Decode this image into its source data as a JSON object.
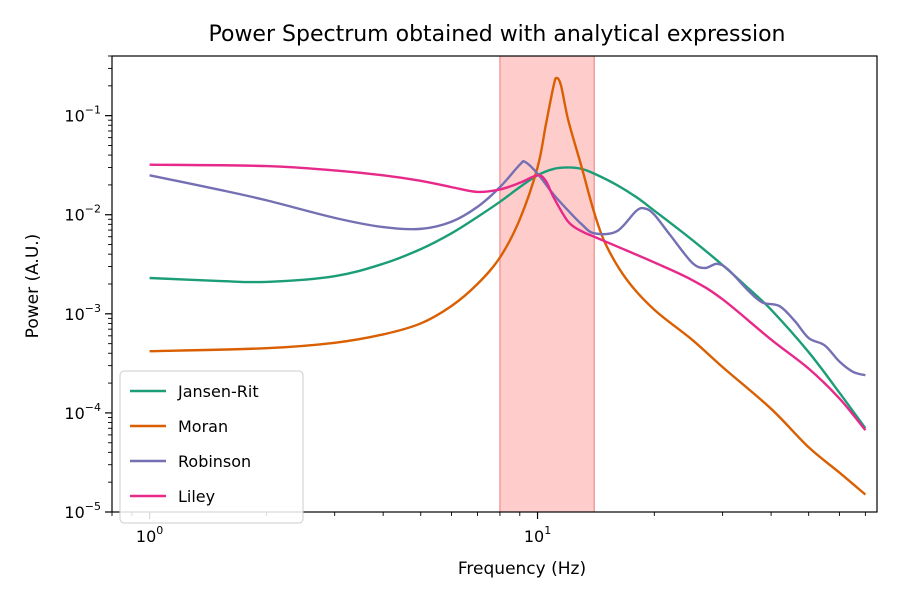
{
  "chart_data": {
    "type": "line",
    "title": "Power Spectrum obtained with analytical expression",
    "xlabel": "Frequency (Hz)",
    "ylabel": "Power (A.U.)",
    "xscale": "log",
    "yscale": "log",
    "xlim": [
      0.8,
      75
    ],
    "ylim": [
      1e-05,
      0.4
    ],
    "grid": false,
    "legend_position": "bottom-left",
    "x_ticks": [
      {
        "value": 1,
        "base": "10",
        "exp": "0"
      },
      {
        "value": 10,
        "base": "10",
        "exp": "1"
      }
    ],
    "y_ticks": [
      {
        "value": 1e-05,
        "base": "10",
        "exp": "−5"
      },
      {
        "value": 0.0001,
        "base": "10",
        "exp": "−4"
      },
      {
        "value": 0.001,
        "base": "10",
        "exp": "−3"
      },
      {
        "value": 0.01,
        "base": "10",
        "exp": "−2"
      },
      {
        "value": 0.1,
        "base": "10",
        "exp": "−1"
      }
    ],
    "highlight_band": {
      "x": [
        8,
        14
      ],
      "color": "#ffcccc",
      "edge_color": "#f08c8c"
    },
    "series": [
      {
        "name": "Jansen-Rit",
        "color": "#1b9e77",
        "points": [
          [
            1,
            0.0023
          ],
          [
            1.5,
            0.00215
          ],
          [
            2,
            0.0021
          ],
          [
            3,
            0.0024
          ],
          [
            4,
            0.0032
          ],
          [
            5,
            0.0045
          ],
          [
            6,
            0.0065
          ],
          [
            7,
            0.0095
          ],
          [
            8,
            0.0135
          ],
          [
            9,
            0.019
          ],
          [
            10,
            0.025
          ],
          [
            11,
            0.029
          ],
          [
            12,
            0.03
          ],
          [
            13,
            0.029
          ],
          [
            14,
            0.026
          ],
          [
            16,
            0.02
          ],
          [
            18,
            0.015
          ],
          [
            20,
            0.011
          ],
          [
            25,
            0.0056
          ],
          [
            30,
            0.0031
          ],
          [
            35,
            0.0018
          ],
          [
            40,
            0.0011
          ],
          [
            50,
            0.00041
          ],
          [
            60,
            0.00016
          ],
          [
            70,
            7e-05
          ]
        ]
      },
      {
        "name": "Moran",
        "color": "#d95f02",
        "points": [
          [
            1,
            0.00042
          ],
          [
            2,
            0.00045
          ],
          [
            3,
            0.00051
          ],
          [
            4,
            0.00062
          ],
          [
            5,
            0.0008
          ],
          [
            6,
            0.0012
          ],
          [
            7,
            0.002
          ],
          [
            8,
            0.0037
          ],
          [
            9,
            0.009
          ],
          [
            10,
            0.03
          ],
          [
            10.5,
            0.08
          ],
          [
            11,
            0.2
          ],
          [
            11.2,
            0.24
          ],
          [
            11.5,
            0.2
          ],
          [
            12,
            0.09
          ],
          [
            13,
            0.03
          ],
          [
            14,
            0.0105
          ],
          [
            15,
            0.005
          ],
          [
            17,
            0.0022
          ],
          [
            20,
            0.0011
          ],
          [
            25,
            0.00055
          ],
          [
            30,
            0.00029
          ],
          [
            40,
            0.00011
          ],
          [
            50,
            4.5e-05
          ],
          [
            60,
            2.5e-05
          ],
          [
            70,
            1.5e-05
          ]
        ]
      },
      {
        "name": "Robinson",
        "color": "#7570b3",
        "points": [
          [
            1,
            0.025
          ],
          [
            1.5,
            0.018
          ],
          [
            2,
            0.014
          ],
          [
            3,
            0.0093
          ],
          [
            4,
            0.0075
          ],
          [
            5,
            0.0072
          ],
          [
            6,
            0.0085
          ],
          [
            7,
            0.012
          ],
          [
            8,
            0.019
          ],
          [
            9,
            0.032
          ],
          [
            9.3,
            0.034
          ],
          [
            10,
            0.026
          ],
          [
            11,
            0.016
          ],
          [
            12,
            0.011
          ],
          [
            13,
            0.008
          ],
          [
            14,
            0.0065
          ],
          [
            16,
            0.0068
          ],
          [
            18,
            0.011
          ],
          [
            19,
            0.0115
          ],
          [
            20,
            0.01
          ],
          [
            22,
            0.0062
          ],
          [
            25,
            0.0033
          ],
          [
            27,
            0.0029
          ],
          [
            29,
            0.0032
          ],
          [
            31,
            0.0028
          ],
          [
            35,
            0.0017
          ],
          [
            38,
            0.0013
          ],
          [
            42,
            0.0012
          ],
          [
            46,
            0.00085
          ],
          [
            50,
            0.00057
          ],
          [
            55,
            0.00048
          ],
          [
            60,
            0.00033
          ],
          [
            65,
            0.00026
          ],
          [
            70,
            0.00024
          ]
        ]
      },
      {
        "name": "Liley",
        "color": "#e7298a",
        "points": [
          [
            1,
            0.032
          ],
          [
            2,
            0.031
          ],
          [
            3,
            0.028
          ],
          [
            4,
            0.025
          ],
          [
            5,
            0.022
          ],
          [
            6,
            0.019
          ],
          [
            7,
            0.017
          ],
          [
            8,
            0.018
          ],
          [
            9,
            0.021
          ],
          [
            10,
            0.025
          ],
          [
            10.5,
            0.022
          ],
          [
            11,
            0.015
          ],
          [
            12,
            0.0085
          ],
          [
            13,
            0.0068
          ],
          [
            14,
            0.006
          ],
          [
            16,
            0.0048
          ],
          [
            20,
            0.0033
          ],
          [
            25,
            0.0022
          ],
          [
            30,
            0.0014
          ],
          [
            40,
            0.00055
          ],
          [
            50,
            0.00028
          ],
          [
            60,
            0.00014
          ],
          [
            70,
            6.7e-05
          ]
        ]
      }
    ]
  }
}
